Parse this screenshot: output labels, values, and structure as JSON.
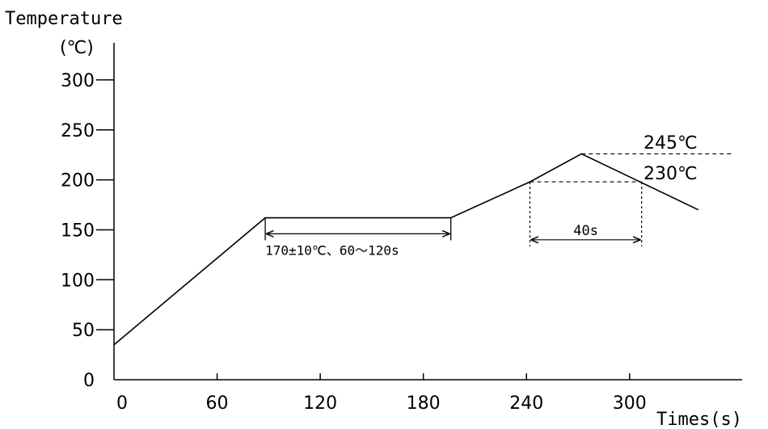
{
  "chart_data": {
    "type": "line",
    "title": "",
    "ylabel": "Temperature",
    "yunit": "(℃)",
    "xlabel": "Times(s)",
    "x_ticks": [
      "0",
      "60",
      "120",
      "180",
      "240",
      "300"
    ],
    "y_ticks": [
      "0",
      "50",
      "100",
      "150",
      "200",
      "250",
      "300"
    ],
    "xlim": [
      0,
      360
    ],
    "ylim": [
      0,
      300
    ],
    "grid": false,
    "series": [
      {
        "x": [
          0,
          88,
          196,
          242,
          272,
          340
        ],
        "y": [
          35,
          162,
          162,
          198,
          226,
          170
        ]
      }
    ],
    "annotations": {
      "soak": {
        "x_start": 88,
        "x_end": 196,
        "y": 162,
        "arrow_y": 146,
        "label": "170±10℃、60～120s"
      },
      "peak": {
        "x_start": 272,
        "x_end": 345,
        "y": 226,
        "label": "245℃"
      },
      "reflow": {
        "x_start": 242,
        "x_end": 307,
        "y": 198,
        "label": "230℃"
      },
      "duration": {
        "x_start": 242,
        "x_end": 307,
        "arrow_y": 140,
        "label": "40s"
      }
    }
  }
}
